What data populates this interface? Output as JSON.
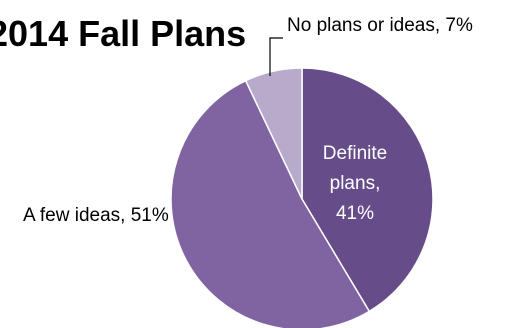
{
  "chart_data": {
    "type": "pie",
    "title": "2014 Fall Plans",
    "slices": [
      {
        "label": "Definite plans",
        "value": 41,
        "color": "#664d8a",
        "data_label": [
          "Definite",
          "plans,",
          "41%"
        ]
      },
      {
        "label": "A few ideas",
        "value": 51,
        "color": "#8064a2",
        "data_label": [
          "A few ideas, 51%"
        ]
      },
      {
        "label": "No plans or ideas",
        "value": 7,
        "color": "#b7aacb",
        "data_label": [
          "No plans or ideas, 7%"
        ]
      }
    ],
    "legend": "none"
  }
}
